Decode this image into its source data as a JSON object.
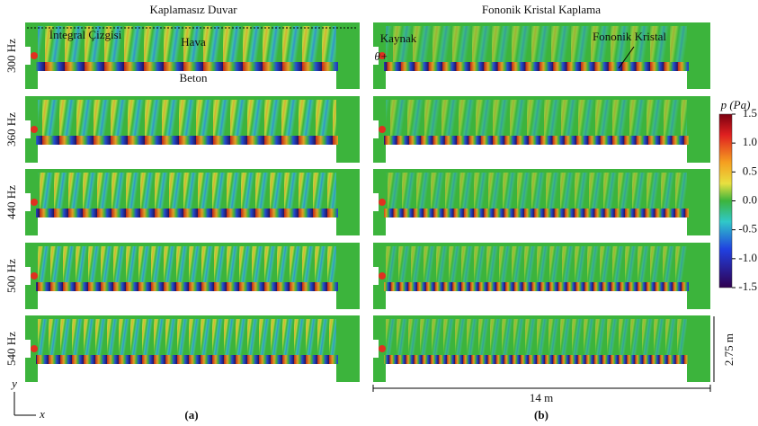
{
  "columns": [
    {
      "title": "Kaplamasız Duvar",
      "label": "(a)"
    },
    {
      "title": "Fononik Kristal Kaplama",
      "label": "(b)"
    }
  ],
  "rows": [
    "300 Hz",
    "360 Hz",
    "440 Hz",
    "500 Hz",
    "540 Hz"
  ],
  "annotations": {
    "integral_line": "İntegral Çizgisi",
    "air": "Hava",
    "concrete": "Beton",
    "source": "Kaynak",
    "angle": "θ+",
    "crystal": "Fononik Kristal"
  },
  "colorbar": {
    "label": "p (Pa)",
    "range": [
      -1.5,
      1.5
    ],
    "ticks": [
      1.5,
      {
        "value": 1.0,
        "label": "1.0"
      },
      0.5,
      {
        "value": 0.0,
        "label": "0.0"
      },
      -0.5,
      {
        "value": -1.0,
        "label": "-1.0"
      },
      -1.5
    ]
  },
  "dimensions": {
    "height": "2.75 m",
    "width": "14 m"
  },
  "axes": {
    "y": "y",
    "x": "x"
  }
}
